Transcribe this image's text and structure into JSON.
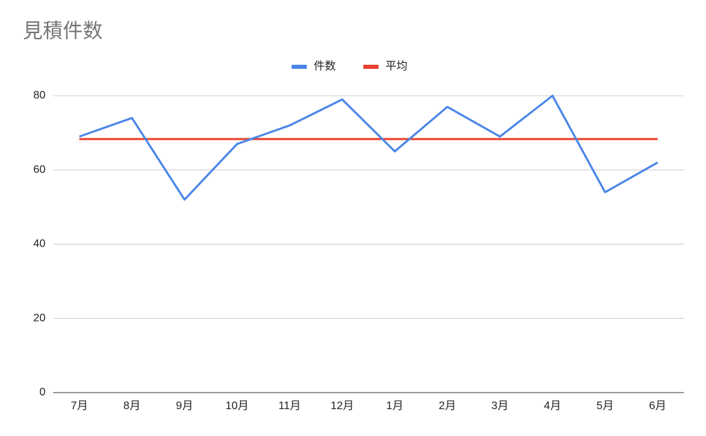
{
  "chart_data": {
    "type": "line",
    "title": "見積件数",
    "categories": [
      "7月",
      "8月",
      "9月",
      "10月",
      "11月",
      "12月",
      "1月",
      "2月",
      "3月",
      "4月",
      "5月",
      "6月"
    ],
    "series": [
      {
        "name": "件数",
        "color": "#4a86e8",
        "values": [
          69,
          74,
          52,
          67,
          72,
          79,
          65,
          77,
          69,
          80,
          54,
          62
        ]
      },
      {
        "name": "平均",
        "color": "#e8412f",
        "values": [
          68.33,
          68.33,
          68.33,
          68.33,
          68.33,
          68.33,
          68.33,
          68.33,
          68.33,
          68.33,
          68.33,
          68.33
        ]
      }
    ],
    "ylim": [
      0,
      80
    ],
    "yticks": [
      0,
      20,
      40,
      60,
      80
    ],
    "grid": true,
    "legend": "top"
  }
}
